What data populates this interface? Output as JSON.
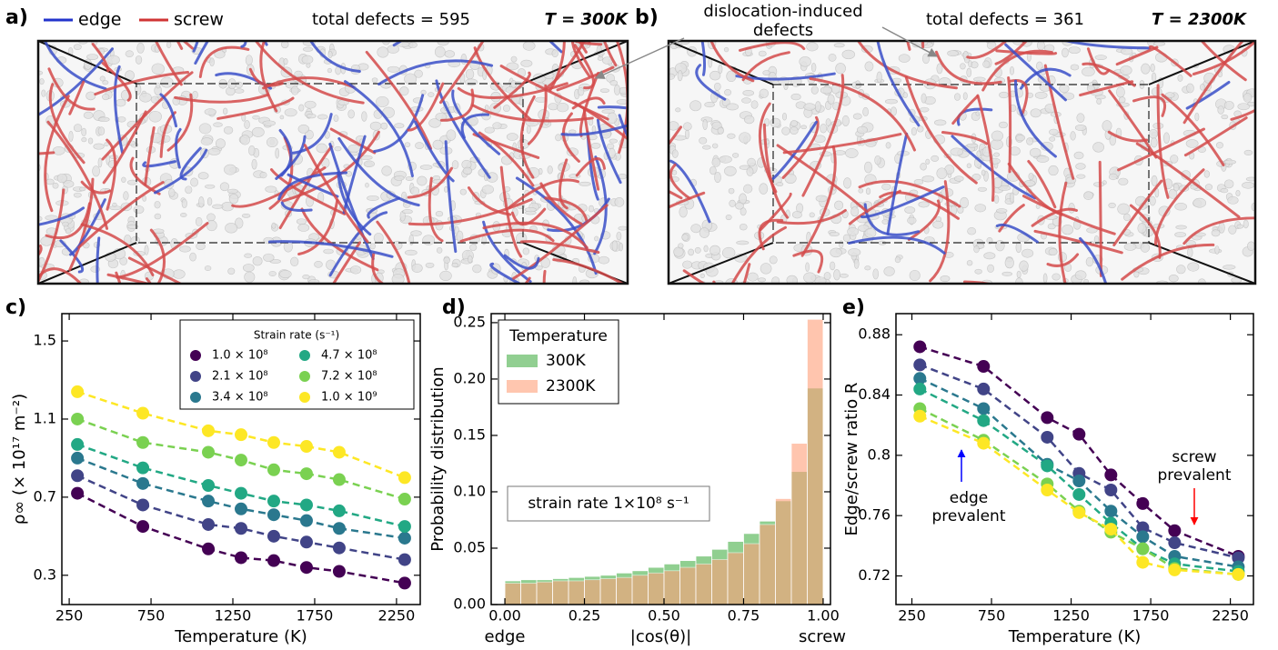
{
  "snapshots": [
    {
      "label": "a)",
      "legend": [
        {
          "name": "edge",
          "color": "#2233cc"
        },
        {
          "name": "screw",
          "color": "#d03434"
        }
      ],
      "total": "total defects = 595",
      "temperature": "T = 300K",
      "color": "#3aa66a"
    },
    {
      "label": "b)",
      "annotation": [
        "dislocation-induced",
        "defects"
      ],
      "total": "total defects = 361",
      "temperature": "T = 2300K",
      "color": "#f4a07a"
    }
  ],
  "chart_data": [
    {
      "type": "line",
      "panel_label": "c)",
      "xlabel": "Temperature (K)",
      "ylabel": "ρ∞ (× 10¹⁷ m⁻²)",
      "x": [
        300,
        700,
        1100,
        1300,
        1500,
        1700,
        1900,
        2300
      ],
      "xlim": [
        205,
        2395
      ],
      "xticks": [
        250,
        750,
        1250,
        1750,
        2250
      ],
      "ylim": [
        0.15,
        1.64
      ],
      "yticks": [
        0.3,
        0.7,
        1.1,
        1.5
      ],
      "legend_title": "Strain rate (s⁻¹)",
      "legend_position": "upper right",
      "series": [
        {
          "name": "1.0 × 10⁸",
          "color": "#440154",
          "values": [
            0.72,
            0.55,
            0.435,
            0.39,
            0.375,
            0.34,
            0.32,
            0.26
          ]
        },
        {
          "name": "2.1 × 10⁸",
          "color": "#414487",
          "values": [
            0.81,
            0.66,
            0.56,
            0.54,
            0.5,
            0.47,
            0.44,
            0.38
          ]
        },
        {
          "name": "3.4 × 10⁸",
          "color": "#2a788e",
          "values": [
            0.9,
            0.77,
            0.68,
            0.64,
            0.61,
            0.58,
            0.54,
            0.49
          ]
        },
        {
          "name": "4.7 × 10⁸",
          "color": "#22a884",
          "values": [
            0.97,
            0.85,
            0.76,
            0.72,
            0.68,
            0.66,
            0.63,
            0.55
          ]
        },
        {
          "name": "7.2 × 10⁸",
          "color": "#7ad151",
          "values": [
            1.1,
            0.98,
            0.93,
            0.89,
            0.84,
            0.82,
            0.79,
            0.69
          ]
        },
        {
          "name": "1.0 × 10⁹",
          "color": "#fde725",
          "values": [
            1.24,
            1.13,
            1.04,
            1.02,
            0.98,
            0.96,
            0.93,
            0.8
          ]
        }
      ]
    },
    {
      "type": "histogram",
      "panel_label": "d)",
      "xlabel": "|cos(θ)|",
      "ylabel": "Probability distribution",
      "bins": [
        0,
        0.05,
        0.1,
        0.15,
        0.2,
        0.25,
        0.3,
        0.35,
        0.4,
        0.45,
        0.5,
        0.55,
        0.6,
        0.65,
        0.7,
        0.75,
        0.8,
        0.85,
        0.9,
        0.95,
        1
      ],
      "series": [
        {
          "name": "300K",
          "color": "#6cbf6c",
          "values": [
            0.021,
            0.022,
            0.022,
            0.023,
            0.024,
            0.025,
            0.026,
            0.028,
            0.03,
            0.033,
            0.036,
            0.039,
            0.043,
            0.049,
            0.056,
            0.063,
            0.074,
            0.092,
            0.118,
            0.192
          ]
        },
        {
          "name": "2300K",
          "color": "#ffa07a",
          "values": [
            0.019,
            0.019,
            0.02,
            0.021,
            0.021,
            0.022,
            0.023,
            0.024,
            0.026,
            0.028,
            0.03,
            0.033,
            0.036,
            0.04,
            0.046,
            0.054,
            0.071,
            0.094,
            0.143,
            0.253
          ]
        }
      ],
      "legend_title": "Temperature",
      "legend_position": "upper left",
      "xlim": [
        -0.043,
        1.023
      ],
      "xticks": [
        {
          "value": 0,
          "label": "0.00"
        },
        {
          "value": 0.25,
          "label": "0.25"
        },
        {
          "value": 0.5,
          "label": "0.50"
        },
        {
          "value": 0.75,
          "label": "0.75"
        },
        {
          "value": 1,
          "label": "1.00"
        }
      ],
      "ylim": [
        0,
        0.258
      ],
      "yticks": [
        {
          "value": 0,
          "label": "0.00"
        },
        {
          "value": 0.05,
          "label": "0.05"
        },
        {
          "value": 0.1,
          "label": "0.10"
        },
        {
          "value": 0.15,
          "label": "0.15"
        },
        {
          "value": 0.2,
          "label": "0.20"
        },
        {
          "value": 0.25,
          "label": "0.25"
        }
      ],
      "annotation": "strain rate 1×10⁸ s⁻¹",
      "end_labels": [
        {
          "text": "edge",
          "color": "#0000ff"
        },
        {
          "text": "screw",
          "color": "#ff0000"
        }
      ]
    },
    {
      "type": "line",
      "panel_label": "e)",
      "xlabel": "Temperature (K)",
      "ylabel": "Edge/screw ratio R",
      "x": [
        300,
        700,
        1100,
        1300,
        1500,
        1700,
        1900,
        2300
      ],
      "xlim": [
        150,
        2395
      ],
      "xticks": [
        250,
        750,
        1250,
        1750,
        2250
      ],
      "ylim": [
        0.701,
        0.894
      ],
      "yticks": [
        0.72,
        0.76,
        0.8,
        0.84,
        0.88
      ],
      "series": [
        {
          "color": "#440154",
          "values": [
            0.872,
            0.859,
            0.825,
            0.814,
            0.787,
            0.768,
            0.75,
            0.733
          ]
        },
        {
          "color": "#414487",
          "values": [
            0.86,
            0.844,
            0.812,
            0.788,
            0.777,
            0.752,
            0.742,
            0.732
          ]
        },
        {
          "color": "#2a788e",
          "values": [
            0.851,
            0.831,
            0.794,
            0.783,
            0.763,
            0.746,
            0.733,
            0.726
          ]
        },
        {
          "color": "#22a884",
          "values": [
            0.844,
            0.823,
            0.793,
            0.774,
            0.755,
            0.738,
            0.728,
            0.723
          ]
        },
        {
          "color": "#7ad151",
          "values": [
            0.831,
            0.81,
            0.781,
            0.763,
            0.749,
            0.738,
            0.725,
            0.721
          ]
        },
        {
          "color": "#fde725",
          "values": [
            0.826,
            0.808,
            0.777,
            0.762,
            0.751,
            0.729,
            0.724,
            0.721
          ]
        }
      ],
      "annotations": [
        {
          "text": [
            "edge",
            "prevalent"
          ],
          "color": "#0000ff"
        },
        {
          "text": [
            "screw",
            "prevalent"
          ],
          "color": "#ff0000"
        }
      ]
    }
  ]
}
